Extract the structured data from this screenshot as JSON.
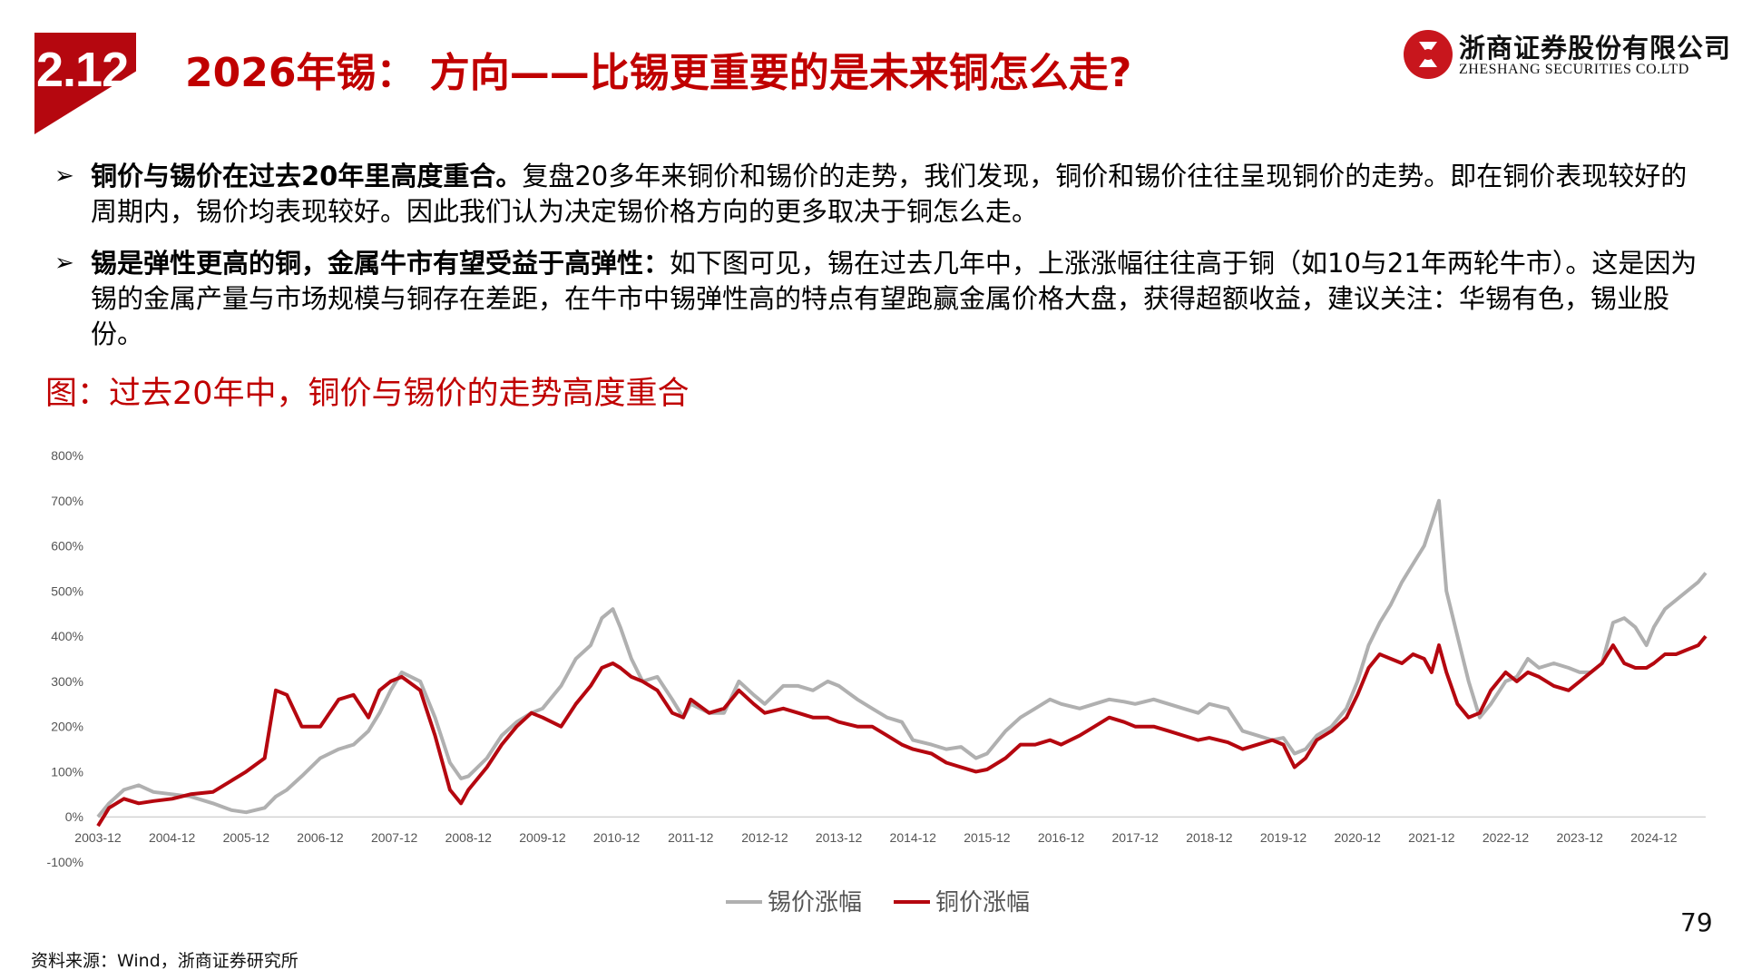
{
  "header": {
    "section_number": "2.12",
    "title": "2026年锡： 方向——比锡更重要的是未来铜怎么走?",
    "logo_cn": "浙商证券股份有限公司",
    "logo_en": "ZHESHANG SECURITIES CO.LTD"
  },
  "bullets": [
    {
      "marker": "➢",
      "bold": "铜价与锡价在过去20年里高度重合。",
      "text": "复盘20多年来铜价和锡价的走势，我们发现，铜价和锡价往往呈现铜价的走势。即在铜价表现较好的周期内，锡价均表现较好。因此我们认为决定锡价格方向的更多取决于铜怎么走。"
    },
    {
      "marker": "➢",
      "bold": "锡是弹性更高的铜，金属牛市有望受益于高弹性：",
      "text": "如下图可见，锡在过去几年中，上涨涨幅往往高于铜（如10与21年两轮牛市）。这是因为锡的金属产量与市场规模与铜存在差距，在牛市中锡弹性高的特点有望跑赢金属价格大盘，获得超额收益，建议关注：华锡有色，锡业股份。"
    }
  ],
  "figure_caption": "图：过去20年中，铜价与锡价的走势高度重合",
  "chart_data": {
    "type": "line",
    "title": "",
    "xlabel": "",
    "ylabel": "",
    "ylim": [
      -100,
      800
    ],
    "y_ticks": [
      "800%",
      "700%",
      "600%",
      "500%",
      "400%",
      "300%",
      "200%",
      "100%",
      "0%",
      "-100%"
    ],
    "x_ticks": [
      "2003-12",
      "2004-12",
      "2005-12",
      "2006-12",
      "2007-12",
      "2008-12",
      "2009-12",
      "2010-12",
      "2011-12",
      "2012-12",
      "2013-12",
      "2014-12",
      "2015-12",
      "2016-12",
      "2017-12",
      "2018-12",
      "2019-12",
      "2020-12",
      "2021-12",
      "2022-12",
      "2023-12",
      "2024-12"
    ],
    "x": [
      2003.95,
      2004.1,
      2004.3,
      2004.5,
      2004.7,
      2004.95,
      2005.2,
      2005.5,
      2005.75,
      2005.95,
      2006.2,
      2006.35,
      2006.5,
      2006.7,
      2006.95,
      2007.2,
      2007.4,
      2007.6,
      2007.75,
      2007.9,
      2008.05,
      2008.3,
      2008.5,
      2008.7,
      2008.85,
      2008.95,
      2009.2,
      2009.4,
      2009.6,
      2009.8,
      2009.95,
      2010.2,
      2010.4,
      2010.6,
      2010.75,
      2010.9,
      2011.0,
      2011.15,
      2011.3,
      2011.5,
      2011.7,
      2011.85,
      2011.95,
      2012.2,
      2012.4,
      2012.6,
      2012.8,
      2012.95,
      2013.2,
      2013.4,
      2013.6,
      2013.8,
      2013.95,
      2014.2,
      2014.4,
      2014.6,
      2014.8,
      2014.95,
      2015.2,
      2015.4,
      2015.6,
      2015.8,
      2015.95,
      2016.2,
      2016.4,
      2016.6,
      2016.8,
      2016.95,
      2017.2,
      2017.4,
      2017.6,
      2017.8,
      2017.95,
      2018.2,
      2018.4,
      2018.6,
      2018.8,
      2018.95,
      2019.2,
      2019.4,
      2019.6,
      2019.8,
      2019.95,
      2020.1,
      2020.25,
      2020.4,
      2020.6,
      2020.8,
      2020.95,
      2021.1,
      2021.25,
      2021.4,
      2021.55,
      2021.7,
      2021.85,
      2021.95,
      2022.05,
      2022.15,
      2022.3,
      2022.45,
      2022.6,
      2022.75,
      2022.95,
      2023.1,
      2023.25,
      2023.4,
      2023.6,
      2023.8,
      2023.95,
      2024.1,
      2024.25,
      2024.4,
      2024.55,
      2024.7,
      2024.85,
      2024.95,
      2025.1,
      2025.25,
      2025.4,
      2025.55,
      2025.65
    ],
    "series": [
      {
        "name": "锡价涨幅",
        "color": "#b0b0b0",
        "values": [
          0,
          30,
          60,
          70,
          55,
          50,
          45,
          30,
          15,
          10,
          20,
          45,
          60,
          90,
          130,
          150,
          160,
          190,
          230,
          280,
          320,
          300,
          220,
          120,
          85,
          90,
          130,
          180,
          210,
          230,
          240,
          290,
          350,
          380,
          440,
          460,
          420,
          350,
          300,
          310,
          260,
          220,
          250,
          230,
          230,
          300,
          270,
          250,
          290,
          290,
          280,
          300,
          290,
          260,
          240,
          220,
          210,
          170,
          160,
          150,
          155,
          130,
          140,
          190,
          220,
          240,
          260,
          250,
          240,
          250,
          260,
          255,
          250,
          260,
          250,
          240,
          230,
          250,
          240,
          190,
          180,
          170,
          175,
          140,
          150,
          180,
          200,
          240,
          300,
          380,
          430,
          470,
          520,
          560,
          600,
          650,
          700,
          500,
          400,
          300,
          220,
          250,
          300,
          310,
          350,
          330,
          340,
          330,
          320,
          320,
          340,
          430,
          440,
          420,
          380,
          420,
          460,
          480,
          500,
          520,
          540
        ],
        "y_unit": "%"
      },
      {
        "name": "铜价涨幅",
        "color": "#b5070f",
        "values": [
          -20,
          20,
          40,
          30,
          35,
          40,
          50,
          55,
          80,
          100,
          130,
          280,
          270,
          200,
          200,
          260,
          270,
          220,
          280,
          300,
          310,
          280,
          180,
          60,
          30,
          60,
          110,
          160,
          200,
          230,
          220,
          200,
          250,
          290,
          330,
          340,
          330,
          310,
          300,
          280,
          230,
          220,
          260,
          230,
          240,
          280,
          250,
          230,
          240,
          230,
          220,
          220,
          210,
          200,
          200,
          180,
          160,
          150,
          140,
          120,
          110,
          100,
          105,
          130,
          160,
          160,
          170,
          160,
          180,
          200,
          220,
          210,
          200,
          200,
          190,
          180,
          170,
          175,
          165,
          150,
          160,
          170,
          160,
          110,
          130,
          170,
          190,
          220,
          270,
          330,
          360,
          350,
          340,
          360,
          350,
          320,
          380,
          320,
          250,
          220,
          230,
          280,
          320,
          300,
          320,
          310,
          290,
          280,
          300,
          320,
          340,
          380,
          340,
          330,
          330,
          340,
          360,
          360,
          370,
          380,
          400
        ],
        "y_unit": "%"
      }
    ],
    "legend": {
      "position": "bottom-center",
      "entries": [
        "锡价涨幅",
        "铜价涨幅"
      ]
    },
    "grid": false
  },
  "footer": {
    "page_number": "79",
    "source": "资料来源：Wind，浙商证券研究所"
  }
}
